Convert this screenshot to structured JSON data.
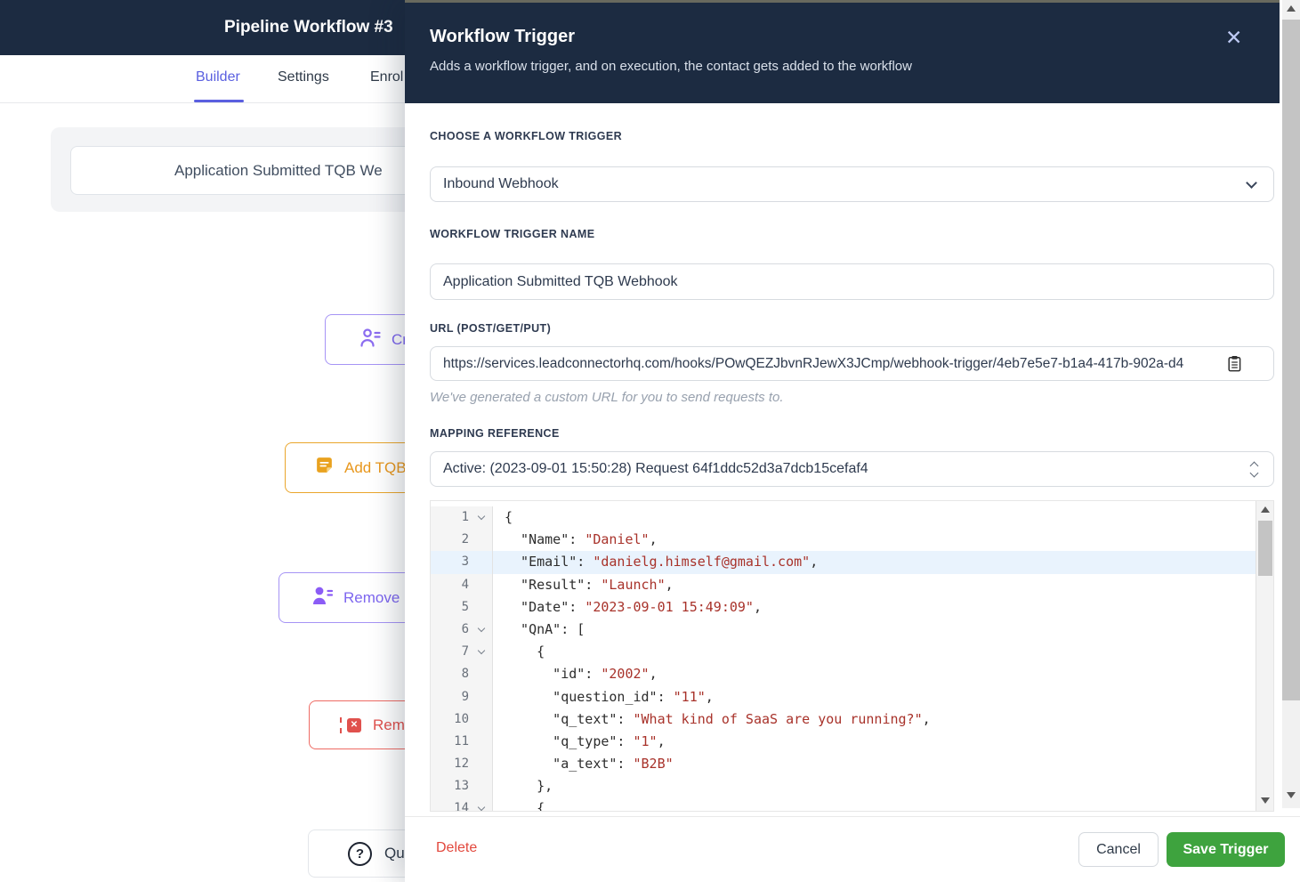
{
  "page": {
    "title": "Pipeline Workflow #3",
    "tabs": [
      {
        "label": "Builder",
        "active": true
      },
      {
        "label": "Settings",
        "active": false
      },
      {
        "label": "Enrol",
        "active": false
      }
    ],
    "workflow_name_input": "Application Submitted TQB We",
    "buttons": {
      "create": "Cre",
      "add_tqb": "Add TQB",
      "remove": "Remove",
      "remove_red": "Remo",
      "question": "Qu"
    },
    "icons": {
      "question_mark": "?"
    }
  },
  "modal": {
    "title": "Workflow Trigger",
    "subtitle": "Adds a workflow trigger, and on execution, the contact gets added to the workflow",
    "close_glyph": "✕",
    "fields": {
      "trigger_label": "CHOOSE A WORKFLOW TRIGGER",
      "trigger_value": "Inbound Webhook",
      "name_label": "WORKFLOW TRIGGER NAME",
      "name_value": "Application Submitted TQB Webhook",
      "url_label": "URL (POST/GET/PUT)",
      "url_value": "https://services.leadconnectorhq.com/hooks/POwQEZJbvnRJewX3JCmp/webhook-trigger/4eb7e5e7-b1a4-417b-902a-d4",
      "url_helper": "We've generated a custom URL for you to send requests to.",
      "mapping_label": "MAPPING REFERENCE",
      "mapping_value": "Active: (2023-09-01 15:50:28) Request 64f1ddc52d3a7dcb15cefaf4"
    },
    "code": {
      "highlighted_line": 3,
      "lines": [
        {
          "n": 1,
          "fold": true,
          "hl": false,
          "segs": [
            [
              "{",
              "p"
            ]
          ]
        },
        {
          "n": 2,
          "fold": false,
          "hl": false,
          "segs": [
            [
              "  \"Name\": ",
              "p"
            ],
            [
              "\"Daniel\"",
              "s"
            ],
            [
              ",",
              "p"
            ]
          ]
        },
        {
          "n": 3,
          "fold": false,
          "hl": true,
          "segs": [
            [
              "  \"Email\": ",
              "p"
            ],
            [
              "\"danielg.himself@gmail.com\"",
              "s"
            ],
            [
              ",",
              "p"
            ]
          ]
        },
        {
          "n": 4,
          "fold": false,
          "hl": false,
          "segs": [
            [
              "  \"Result\": ",
              "p"
            ],
            [
              "\"Launch\"",
              "s"
            ],
            [
              ",",
              "p"
            ]
          ]
        },
        {
          "n": 5,
          "fold": false,
          "hl": false,
          "segs": [
            [
              "  \"Date\": ",
              "p"
            ],
            [
              "\"2023-09-01 15:49:09\"",
              "s"
            ],
            [
              ",",
              "p"
            ]
          ]
        },
        {
          "n": 6,
          "fold": true,
          "hl": false,
          "segs": [
            [
              "  \"QnA\": [",
              "p"
            ]
          ]
        },
        {
          "n": 7,
          "fold": true,
          "hl": false,
          "segs": [
            [
              "    {",
              "p"
            ]
          ]
        },
        {
          "n": 8,
          "fold": false,
          "hl": false,
          "segs": [
            [
              "      \"id\": ",
              "p"
            ],
            [
              "\"2002\"",
              "s"
            ],
            [
              ",",
              "p"
            ]
          ]
        },
        {
          "n": 9,
          "fold": false,
          "hl": false,
          "segs": [
            [
              "      \"question_id\": ",
              "p"
            ],
            [
              "\"11\"",
              "s"
            ],
            [
              ",",
              "p"
            ]
          ]
        },
        {
          "n": 10,
          "fold": false,
          "hl": false,
          "segs": [
            [
              "      \"q_text\": ",
              "p"
            ],
            [
              "\"What kind of SaaS are you running?\"",
              "s"
            ],
            [
              ",",
              "p"
            ]
          ]
        },
        {
          "n": 11,
          "fold": false,
          "hl": false,
          "segs": [
            [
              "      \"q_type\": ",
              "p"
            ],
            [
              "\"1\"",
              "s"
            ],
            [
              ",",
              "p"
            ]
          ]
        },
        {
          "n": 12,
          "fold": false,
          "hl": false,
          "segs": [
            [
              "      \"a_text\": ",
              "p"
            ],
            [
              "\"B2B\"",
              "s"
            ]
          ]
        },
        {
          "n": 13,
          "fold": false,
          "hl": false,
          "segs": [
            [
              "    },",
              "p"
            ]
          ]
        },
        {
          "n": 14,
          "fold": true,
          "hl": false,
          "segs": [
            [
              "    {",
              "p"
            ]
          ]
        }
      ]
    },
    "footer": {
      "delete": "Delete",
      "cancel": "Cancel",
      "save": "Save Trigger"
    }
  },
  "colors": {
    "header_navy": "#1c2b41",
    "accent_indigo": "#5a5fe0",
    "button_purple": "#7d66ef",
    "button_amber": "#e8971d",
    "button_red": "#e0514d",
    "delete_red": "#e2483d",
    "save_green": "#3ea33e",
    "code_string_red": "#a8322a",
    "code_highlight_blue": "#e9f3fd"
  }
}
